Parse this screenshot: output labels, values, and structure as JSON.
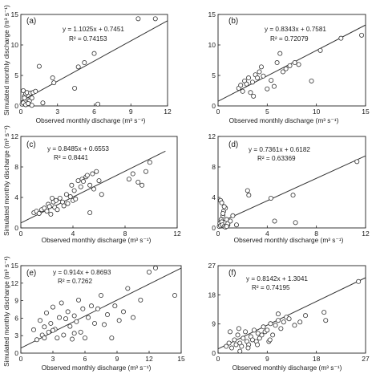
{
  "chart_data": [
    {
      "type": "scatter",
      "panel_label": "(a)",
      "equation": "y = 1.1025x + 0.7451",
      "r2": "R² = 0.74153",
      "xlabel": "Observed monthly discharge (m³ s⁻¹)",
      "ylabel": "Simulated monthly discharge (m³ s⁻¹)",
      "xlim": [
        0,
        12
      ],
      "ylim": [
        0,
        15
      ],
      "xticks": [
        0,
        3,
        6,
        9,
        12
      ],
      "yticks": [
        0,
        5,
        10,
        15
      ],
      "fit": {
        "slope": 1.1025,
        "intercept": 0.7451
      },
      "x": [
        0.1,
        0.2,
        0.3,
        0.4,
        0.5,
        0.6,
        0.8,
        0.9,
        0.2,
        0.4,
        0.7,
        1.0,
        0.3,
        0.6,
        1.2,
        1.5,
        1.8,
        2.7,
        2.6,
        4.4,
        4.7,
        5.2,
        6.0,
        6.3,
        9.6,
        11.0,
        0.9
      ],
      "y": [
        0.3,
        2.5,
        1.6,
        2.0,
        2.2,
        1.0,
        2.1,
        1.3,
        0.5,
        0.2,
        0.8,
        2.2,
        1.3,
        0.4,
        2.4,
        6.5,
        0.5,
        3.8,
        4.6,
        2.9,
        6.4,
        7.1,
        8.6,
        0.3,
        14.3,
        14.3,
        0.1
      ]
    },
    {
      "type": "scatter",
      "panel_label": "(b)",
      "equation": "y = 0.8343x + 0.7581",
      "r2": "R² = 0.72079",
      "xlabel": "Observed monthly discharge (m³ s⁻¹)",
      "ylabel": "",
      "xlim": [
        0,
        15
      ],
      "ylim": [
        0,
        15
      ],
      "xticks": [
        0,
        5,
        10,
        15
      ],
      "yticks": [
        0,
        5,
        10,
        15
      ],
      "fit": {
        "slope": 0.8343,
        "intercept": 0.7581
      },
      "x": [
        2.1,
        2.3,
        2.5,
        2.7,
        2.9,
        3.1,
        3.3,
        3.5,
        3.8,
        4.0,
        4.2,
        4.4,
        4.6,
        5.0,
        5.4,
        5.7,
        6.0,
        6.3,
        6.6,
        6.9,
        7.3,
        7.8,
        8.2,
        9.5,
        10.4,
        12.5,
        14.6,
        3.6
      ],
      "y": [
        2.9,
        3.4,
        2.4,
        4.1,
        3.6,
        4.6,
        2.2,
        3.9,
        5.1,
        4.6,
        5.6,
        6.4,
        4.9,
        2.8,
        4.2,
        3.2,
        7.1,
        8.6,
        5.6,
        6.1,
        6.6,
        7.1,
        6.8,
        4.1,
        9.1,
        11.1,
        11.6,
        1.6
      ]
    },
    {
      "type": "scatter",
      "panel_label": "(c)",
      "equation": "y = 0.8485x + 0.6553",
      "r2": "R² = 0.8441",
      "xlabel": "Observed monthly discharge (m³ s⁻¹)",
      "ylabel": "Simulated monthly discharge (m³ s⁻¹)",
      "xlim": [
        0,
        12
      ],
      "ylim": [
        0,
        12
      ],
      "xticks": [
        0,
        4,
        8,
        12
      ],
      "yticks": [
        0,
        4,
        8,
        12
      ],
      "fit": {
        "slope": 0.8485,
        "intercept": 0.6553
      },
      "x": [
        1.0,
        1.2,
        1.4,
        1.6,
        1.8,
        2.0,
        2.1,
        2.2,
        2.3,
        2.5,
        2.6,
        2.7,
        2.8,
        3.0,
        3.2,
        3.3,
        3.5,
        3.6,
        3.8,
        4.0,
        4.1,
        4.2,
        4.4,
        4.6,
        4.7,
        4.8,
        5.0,
        5.1,
        5.3,
        5.5,
        5.6,
        5.8,
        6.0,
        6.2,
        2.4,
        3.9,
        8.3,
        8.6,
        9.0,
        9.3,
        9.6,
        9.9,
        5.3
      ],
      "y": [
        2.0,
        2.2,
        1.9,
        2.4,
        2.6,
        2.2,
        3.1,
        2.8,
        1.8,
        3.4,
        2.7,
        3.6,
        2.4,
        3.9,
        3.4,
        2.9,
        4.4,
        3.2,
        4.1,
        3.6,
        4.9,
        3.8,
        6.2,
        5.4,
        6.4,
        6.1,
        6.7,
        6.9,
        5.6,
        7.1,
        5.1,
        7.4,
        6.2,
        4.4,
        3.9,
        5.6,
        6.4,
        7.1,
        6.0,
        5.6,
        7.4,
        8.6,
        2.0
      ]
    },
    {
      "type": "scatter",
      "panel_label": "(d)",
      "equation": "y = 0.7361x + 0.6182",
      "r2": "R² = 0.63369",
      "xlabel": "Observed monthly discharge (m³ s⁻¹)",
      "ylabel": "",
      "xlim": [
        0,
        12
      ],
      "ylim": [
        0,
        12
      ],
      "xticks": [
        0,
        4,
        8,
        12
      ],
      "yticks": [
        0,
        4,
        8,
        12
      ],
      "fit": {
        "slope": 0.7361,
        "intercept": 0.6182
      },
      "x": [
        0.1,
        0.15,
        0.2,
        0.25,
        0.3,
        0.35,
        0.4,
        0.45,
        0.5,
        0.6,
        0.7,
        0.8,
        0.2,
        0.3,
        0.4,
        0.5,
        0.6,
        0.8,
        1.0,
        1.2,
        1.5,
        2.4,
        2.5,
        4.3,
        4.6,
        6.1,
        6.3,
        11.3,
        0.7
      ],
      "y": [
        0.2,
        0.6,
        0.3,
        1.1,
        0.8,
        0.4,
        1.6,
        2.2,
        0.2,
        2.6,
        1.1,
        0.4,
        3.6,
        3.3,
        1.9,
        2.8,
        0.1,
        0.6,
        0.9,
        1.6,
        0.4,
        4.9,
        4.3,
        3.9,
        0.9,
        4.3,
        0.7,
        8.7,
        0.2
      ]
    },
    {
      "type": "scatter",
      "panel_label": "(e)",
      "equation": "y = 0.914x + 0.8693",
      "r2": "R² = 0.7262",
      "xlabel": "Observed monthly discharge (m³ s⁻¹)",
      "ylabel": "Simulated monthly discharge (m³ s⁻¹)",
      "xlim": [
        0,
        15
      ],
      "ylim": [
        0,
        15
      ],
      "xticks": [
        0,
        3,
        6,
        9,
        12,
        15
      ],
      "yticks": [
        0,
        3,
        6,
        9,
        12,
        15
      ],
      "fit": {
        "slope": 0.914,
        "intercept": 0.8693
      },
      "x": [
        1.2,
        1.5,
        1.8,
        2.0,
        2.2,
        2.4,
        2.6,
        2.8,
        3.0,
        3.2,
        3.4,
        3.6,
        3.8,
        4.0,
        4.2,
        4.4,
        4.6,
        4.8,
        5.0,
        5.2,
        5.4,
        5.6,
        5.8,
        6.0,
        6.3,
        6.6,
        6.9,
        7.2,
        7.5,
        7.8,
        8.1,
        8.5,
        8.8,
        9.2,
        9.6,
        10.0,
        10.5,
        11.2,
        12.0,
        12.6,
        14.4,
        2.2,
        3.0,
        5.0
      ],
      "y": [
        4.0,
        2.3,
        5.6,
        3.1,
        4.5,
        6.9,
        3.6,
        5.1,
        7.9,
        4.1,
        2.6,
        6.1,
        8.6,
        3.1,
        5.9,
        7.1,
        4.6,
        2.4,
        6.4,
        5.4,
        9.1,
        3.6,
        7.6,
        2.6,
        6.1,
        8.1,
        5.1,
        7.6,
        9.9,
        4.9,
        6.6,
        2.6,
        8.1,
        5.6,
        7.1,
        11.1,
        6.1,
        9.1,
        13.9,
        14.6,
        9.9,
        2.6,
        3.9,
        3.4
      ]
    },
    {
      "type": "scatter",
      "panel_label": "(f)",
      "equation": "y = 0.8142x + 1.3041",
      "r2": "R² = 0.74195",
      "xlabel": "Observed monthly discharge (m³ s⁻¹)",
      "ylabel": "",
      "xlim": [
        0,
        27
      ],
      "ylim": [
        0,
        27
      ],
      "xticks": [
        0,
        9,
        18,
        27
      ],
      "yticks": [
        0,
        9,
        18,
        27
      ],
      "fit": {
        "slope": 0.8142,
        "intercept": 1.3041
      },
      "x": [
        1.5,
        2.0,
        2.5,
        3.0,
        3.3,
        3.6,
        4.0,
        4.3,
        4.6,
        5.0,
        5.3,
        5.6,
        6.0,
        6.3,
        6.6,
        7.0,
        7.3,
        7.6,
        8.0,
        8.3,
        8.6,
        9.0,
        9.3,
        9.6,
        10.0,
        10.5,
        11.0,
        11.5,
        12.0,
        12.5,
        13.0,
        14.0,
        15.0,
        16.0,
        2.2,
        3.8,
        5.5,
        7.2,
        9.5,
        11.0,
        19.4,
        19.7,
        25.7,
        4.0
      ],
      "y": [
        2.1,
        3.1,
        1.6,
        4.1,
        2.6,
        5.6,
        3.1,
        2.1,
        4.6,
        6.6,
        3.6,
        2.6,
        5.1,
        4.1,
        7.1,
        3.6,
        6.1,
        4.6,
        5.6,
        8.1,
        6.6,
        7.1,
        3.6,
        9.1,
        5.6,
        8.6,
        10.1,
        7.6,
        9.6,
        11.1,
        10.6,
        8.6,
        9.6,
        11.6,
        6.6,
        7.6,
        1.6,
        2.6,
        4.1,
        12.1,
        12.6,
        10.1,
        22.1,
        0.6
      ]
    }
  ]
}
